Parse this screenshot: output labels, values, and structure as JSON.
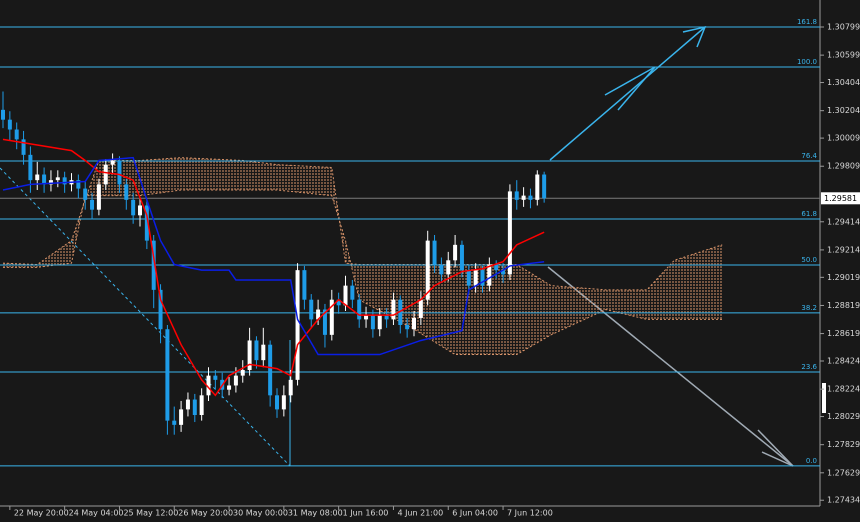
{
  "chart_data": {
    "type": "candlestick",
    "categories": [
      null,
      "22 May 20:00",
      null,
      null,
      null,
      null,
      null,
      null,
      null,
      "24 May 04:00",
      null,
      null,
      null,
      null,
      null,
      null,
      null,
      "25 May 12:00",
      null,
      null,
      null,
      null,
      null,
      null,
      null,
      "26 May 20:00",
      null,
      null,
      null,
      null,
      null,
      null,
      null,
      "30 May 00:00",
      null,
      null,
      null,
      null,
      null,
      null,
      null,
      "31 May 08:00",
      null,
      null,
      null,
      null,
      null,
      null,
      null,
      "1 Jun 16:00",
      null,
      null,
      null,
      null,
      null,
      null,
      null,
      "4 Jun 21:00",
      null,
      null,
      null,
      null,
      null,
      null,
      null,
      "6 Jun 04:00",
      null,
      null,
      null,
      null,
      null,
      null,
      null,
      "7 Jun 12:00",
      null,
      null,
      null,
      null,
      null,
      null
    ],
    "open": [
      1.3021,
      1.3014,
      1.3007,
      1.3,
      1.2989,
      1.2971,
      1.2975,
      1.2968,
      1.2971,
      1.2973,
      1.2968,
      1.2971,
      1.2965,
      1.2957,
      1.295,
      1.2968,
      1.2982,
      1.2985,
      1.2968,
      1.2957,
      1.2946,
      1.2953,
      1.2928,
      1.2893,
      1.2865,
      1.28,
      1.2797,
      1.2808,
      1.2815,
      1.2804,
      1.2818,
      1.2832,
      1.2829,
      1.2822,
      1.2825,
      1.2832,
      1.2836,
      1.2857,
      1.2843,
      1.2854,
      1.2818,
      1.2808,
      1.2818,
      1.2829,
      1.2907,
      1.2886,
      1.2872,
      1.2879,
      1.2861,
      1.2886,
      1.2882,
      1.2896,
      1.2886,
      1.2872,
      1.2875,
      1.2865,
      1.2875,
      1.2872,
      1.2886,
      1.2868,
      1.2865,
      1.2873,
      1.2886,
      1.2928,
      1.2911,
      1.2904,
      1.2914,
      1.2925,
      1.2907,
      1.2896,
      1.2907,
      1.2896,
      1.2911,
      1.2907,
      1.2904,
      1.2963,
      1.2957,
      1.296,
      1.2957,
      1.2975
    ],
    "high": [
      1.3034,
      1.302,
      1.3012,
      1.3006,
      1.2995,
      1.2984,
      1.298,
      1.2978,
      1.2978,
      1.2977,
      1.2976,
      1.2975,
      1.297,
      1.2962,
      1.2972,
      1.2986,
      1.299,
      1.2988,
      1.2972,
      1.2962,
      1.2958,
      1.2957,
      1.2932,
      1.2897,
      1.2868,
      1.281,
      1.2814,
      1.282,
      1.2819,
      1.2823,
      1.2838,
      1.2836,
      1.2834,
      1.2831,
      1.2838,
      1.2843,
      1.2866,
      1.286,
      1.2866,
      1.2857,
      1.2823,
      1.2825,
      1.2836,
      1.2912,
      1.291,
      1.289,
      1.2886,
      1.2883,
      1.2893,
      1.2891,
      1.2903,
      1.29,
      1.289,
      1.2881,
      1.2879,
      1.288,
      1.288,
      1.2891,
      1.2889,
      1.2873,
      1.2878,
      1.2892,
      1.2935,
      1.2932,
      1.2916,
      1.292,
      1.2932,
      1.2928,
      1.2911,
      1.2912,
      1.291,
      1.2916,
      1.2914,
      1.2912,
      1.2968,
      1.2971,
      1.2966,
      1.2965,
      1.2978,
      1.2977
    ],
    "low": [
      1.3008,
      1.2999,
      1.2993,
      1.2982,
      1.2962,
      1.2964,
      1.2962,
      1.2963,
      1.2966,
      1.2962,
      1.2963,
      1.2958,
      1.295,
      1.2943,
      1.2946,
      1.2964,
      1.2976,
      1.2962,
      1.295,
      1.294,
      1.2938,
      1.2922,
      1.288,
      1.2855,
      1.279,
      1.279,
      1.2792,
      1.2803,
      1.2799,
      1.28,
      1.2814,
      1.2822,
      1.2816,
      1.2818,
      1.282,
      1.2827,
      1.2832,
      1.2837,
      1.2838,
      1.281,
      1.2802,
      1.2803,
      1.2813,
      1.2825,
      1.2879,
      1.2866,
      1.2868,
      1.2852,
      1.2857,
      1.2876,
      1.2878,
      1.288,
      1.2866,
      1.2866,
      1.2859,
      1.286,
      1.2866,
      1.2868,
      1.2862,
      1.2859,
      1.286,
      1.2868,
      1.2882,
      1.2905,
      1.2898,
      1.2899,
      1.2909,
      1.2902,
      1.289,
      1.2891,
      1.2891,
      1.2892,
      1.2901,
      1.2898,
      1.29,
      1.295,
      1.2952,
      1.2951,
      1.2953,
      1.2955
    ],
    "close": [
      1.3014,
      1.3007,
      1.3,
      1.2989,
      1.2971,
      1.2975,
      1.2968,
      1.2971,
      1.2973,
      1.2968,
      1.2971,
      1.2965,
      1.2957,
      1.295,
      1.2968,
      1.2982,
      1.2985,
      1.2968,
      1.2957,
      1.2946,
      1.2953,
      1.2928,
      1.2893,
      1.2865,
      1.28,
      1.2797,
      1.2808,
      1.2815,
      1.2804,
      1.2818,
      1.2832,
      1.2829,
      1.2822,
      1.2825,
      1.2832,
      1.2836,
      1.2857,
      1.2843,
      1.2854,
      1.2818,
      1.2808,
      1.2818,
      1.2829,
      1.2907,
      1.2886,
      1.2872,
      1.2879,
      1.2861,
      1.2886,
      1.2882,
      1.2896,
      1.2886,
      1.2872,
      1.2875,
      1.2865,
      1.2875,
      1.2872,
      1.2886,
      1.2868,
      1.2865,
      1.2873,
      1.2886,
      1.2928,
      1.2911,
      1.2904,
      1.2914,
      1.2925,
      1.2907,
      1.2896,
      1.2907,
      1.2896,
      1.2911,
      1.2907,
      1.2904,
      1.2963,
      1.2957,
      1.296,
      1.2957,
      1.2975,
      1.29581
    ],
    "up_color": "#ffffff",
    "down_color": "#1e9ce8",
    "ylim": [
      1.27393,
      1.30991
    ],
    "yticks": [
      1.30799,
      1.30599,
      1.30404,
      1.30204,
      1.30009,
      1.29809,
      1.29414,
      1.29214,
      1.29019,
      1.28819,
      1.28619,
      1.28424,
      1.28224,
      1.28029,
      1.27829,
      1.27629,
      1.27434
    ],
    "current_price": 1.29581,
    "series": [
      {
        "color": "#ff0000",
        "x": [
          0,
          5,
          10,
          12,
          14,
          17,
          19,
          21,
          23,
          26,
          29,
          31,
          33,
          36,
          40,
          42,
          43,
          46,
          49,
          52,
          57,
          61,
          63,
          67,
          70,
          73,
          75,
          79
        ],
        "values": [
          1.3,
          1.2996,
          1.2992,
          1.2985,
          1.2977,
          1.2975,
          1.2971,
          1.2946,
          1.2886,
          1.2854,
          1.2829,
          1.2818,
          1.2832,
          1.284,
          1.2837,
          1.2832,
          1.2854,
          1.2872,
          1.2886,
          1.2875,
          1.2875,
          1.2886,
          1.2896,
          1.2906,
          1.2908,
          1.2913,
          1.2925,
          1.2934
        ]
      },
      {
        "color": "#0a1ee6",
        "x": [
          0,
          4,
          12,
          14,
          19,
          21,
          23,
          25,
          29,
          33,
          34,
          42,
          43,
          46,
          55,
          61,
          67,
          68,
          73,
          74,
          79
        ],
        "values": [
          1.2964,
          1.2968,
          1.297,
          1.2985,
          1.2987,
          1.2957,
          1.2928,
          1.2911,
          1.2907,
          1.2907,
          1.29,
          1.29,
          1.2872,
          1.2847,
          1.2847,
          1.2857,
          1.2864,
          1.2893,
          1.2907,
          1.291,
          1.2913
        ]
      }
    ],
    "cloud": {
      "color": "#d9946a",
      "x": [
        0,
        5,
        10,
        12,
        14,
        20,
        26,
        35,
        40,
        48,
        50,
        52,
        60,
        66,
        75,
        80,
        88,
        94,
        98,
        105
      ],
      "span_a": [
        1.2912,
        1.2911,
        1.2928,
        1.2957,
        1.2985,
        1.2985,
        1.2987,
        1.2985,
        1.2982,
        1.298,
        1.2912,
        1.2911,
        1.2911,
        1.2911,
        1.2911,
        1.2896,
        1.2893,
        1.2893,
        1.2914,
        1.2925
      ],
      "span_b": [
        1.2909,
        1.2909,
        1.2912,
        1.296,
        1.296,
        1.296,
        1.2964,
        1.2964,
        1.2964,
        1.296,
        1.2928,
        1.2886,
        1.2865,
        1.2847,
        1.2847,
        1.2861,
        1.2879,
        1.2872,
        1.2872,
        1.2872
      ]
    },
    "fib_color": "#3ab4ec",
    "fib_levels": [
      {
        "level": 161.8,
        "price": 1.30799
      },
      {
        "level": {
          "value": 100,
          "label": "100.0"
        },
        "price": 1.30515
      },
      {
        "level": 76.4,
        "price": 1.29846
      },
      {
        "level": 61.8,
        "price": 1.29434
      },
      {
        "level": {
          "value": 50,
          "label": "50.0"
        },
        "price": 1.29107
      },
      {
        "level": 38.2,
        "price": 1.28766
      },
      {
        "level": 23.6,
        "price": 1.28346
      },
      {
        "level": {
          "value": 0,
          "label": "0.0"
        },
        "price": 1.27678
      }
    ]
  }
}
